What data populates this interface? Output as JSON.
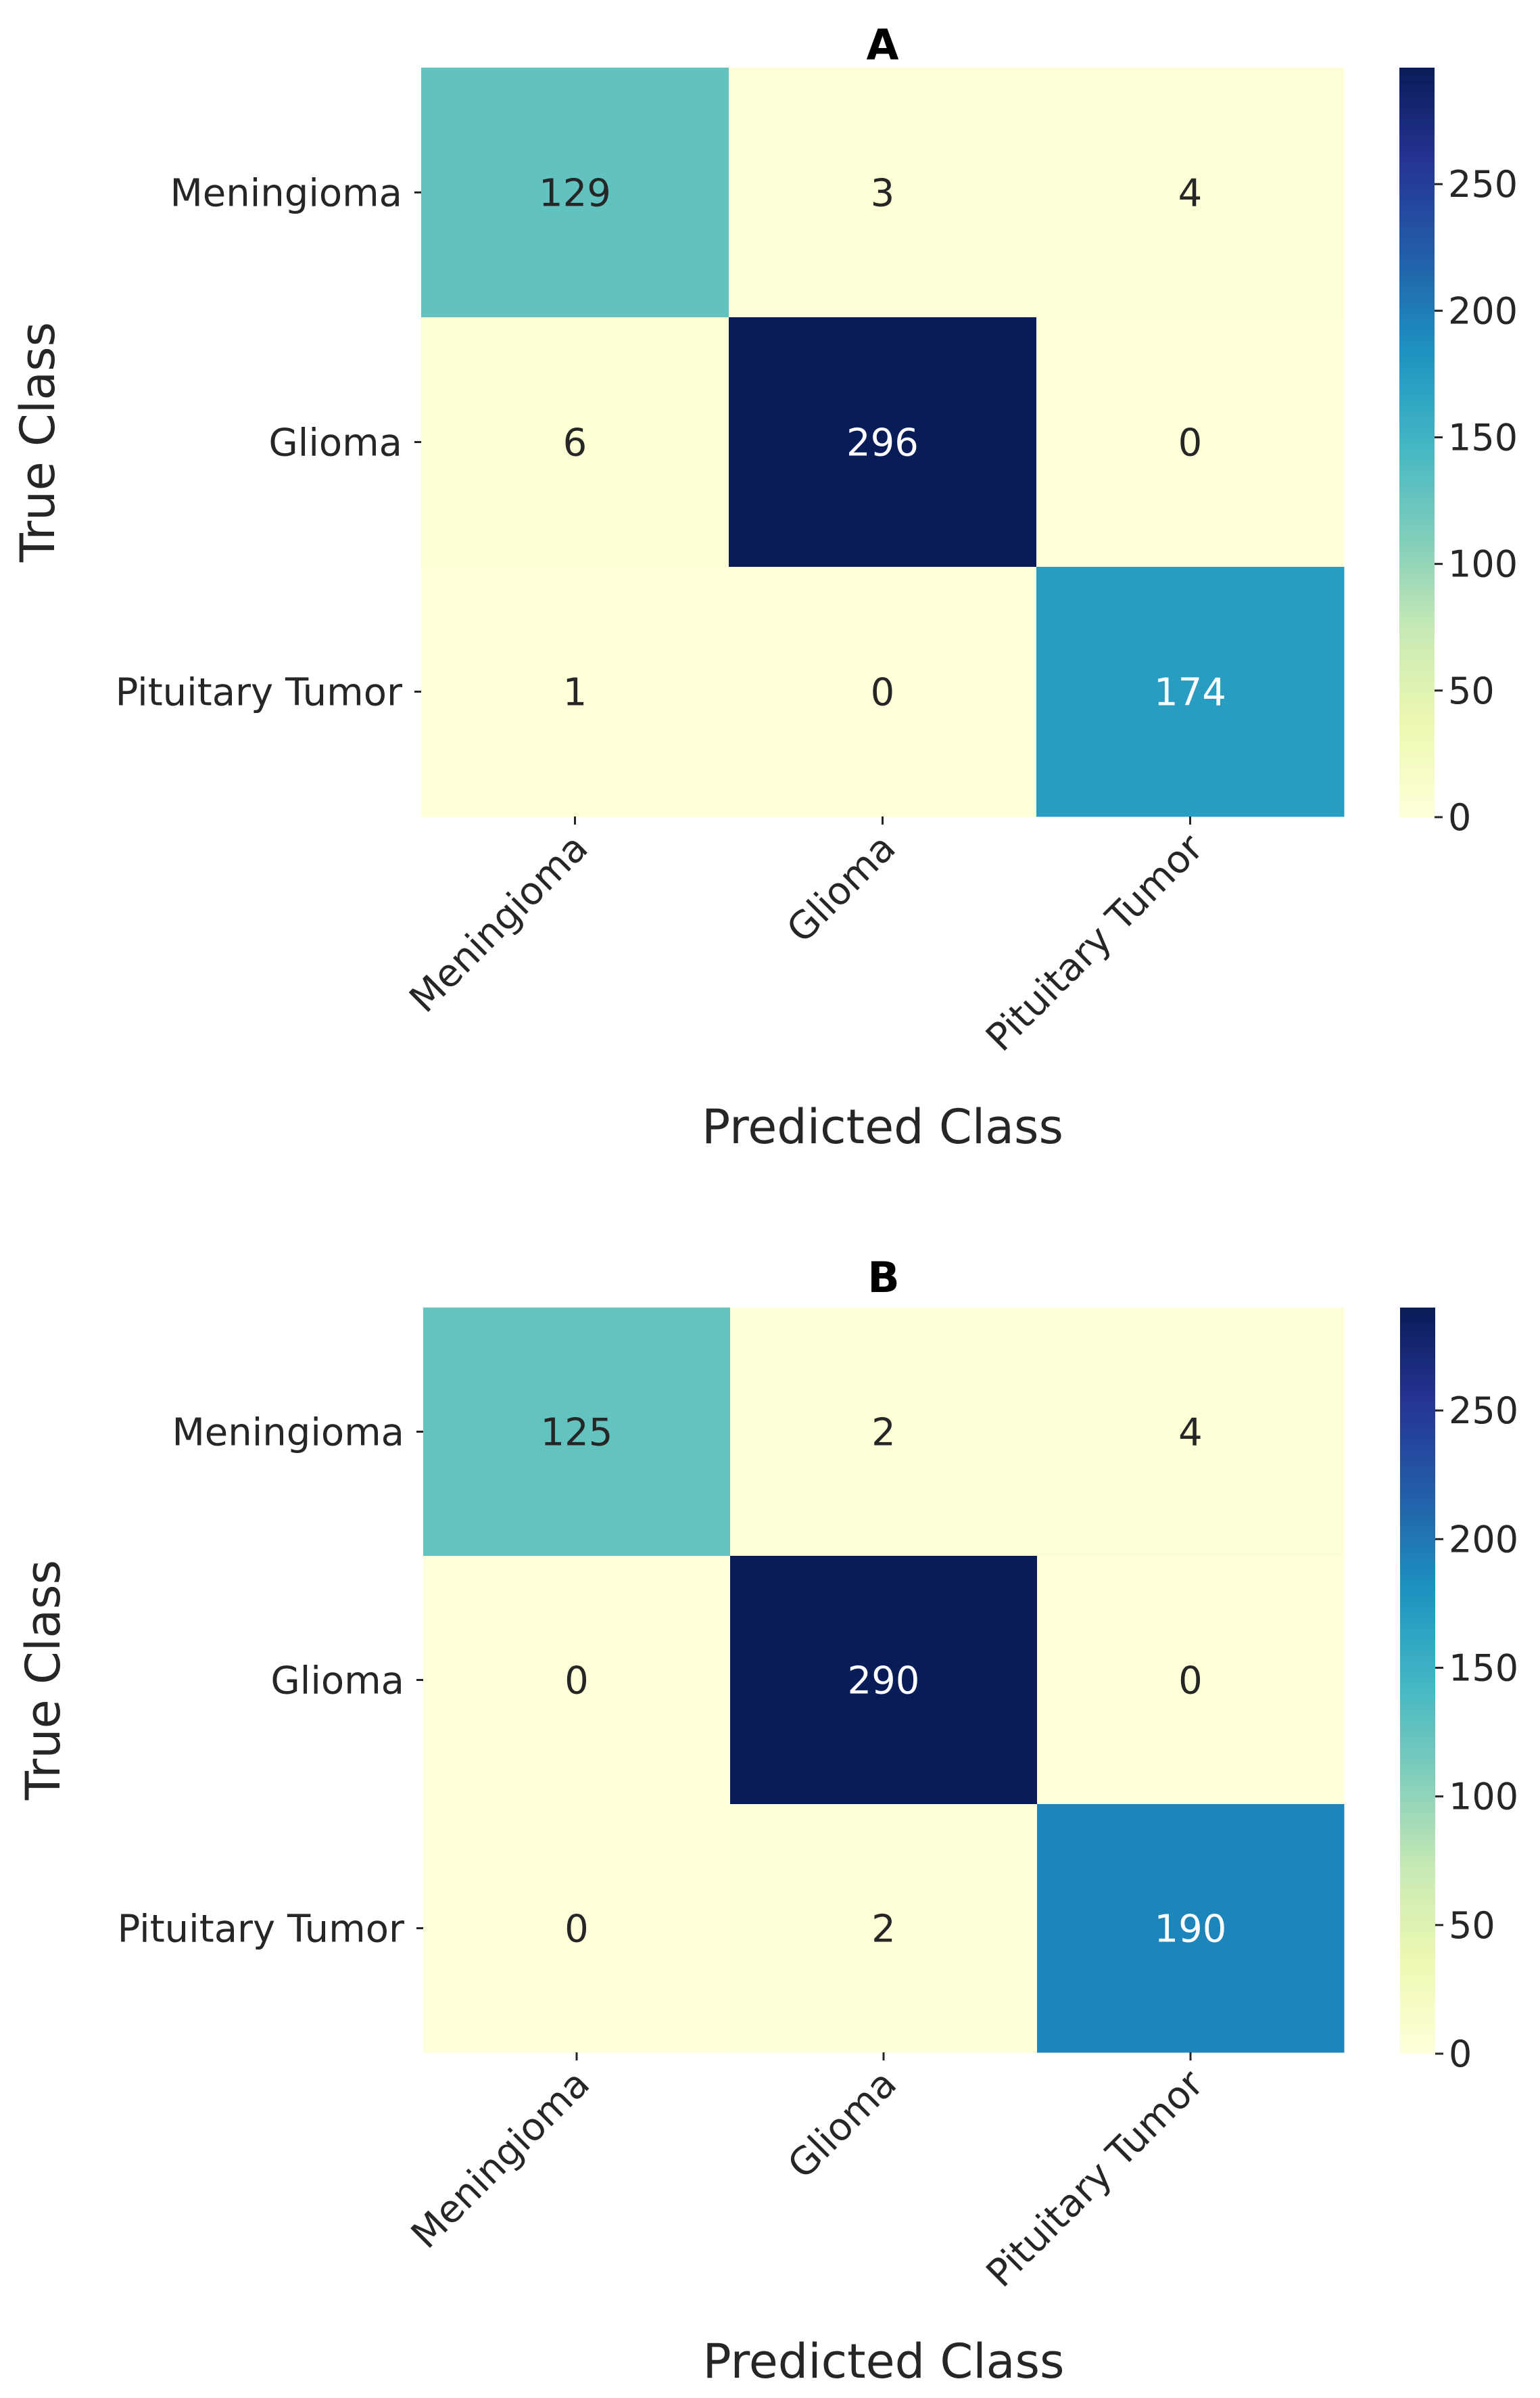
{
  "colors": {
    "background": "#ffffff",
    "text": "#262626",
    "title_text": "#000000",
    "light_cell_text": "#ffffff",
    "colormap": [
      "#ffffd9",
      "#edf8b1",
      "#c7e9b4",
      "#7fcdbb",
      "#41b6c4",
      "#1d91c0",
      "#225ea8",
      "#253494",
      "#081d58"
    ]
  },
  "chart_data": [
    {
      "type": "heatmap",
      "title": "A",
      "xlabel": "Predicted Class",
      "ylabel": "True Class",
      "x_categories": [
        "Meningioma",
        "Glioma",
        "Pituitary Tumor"
      ],
      "y_categories": [
        "Meningioma",
        "Glioma",
        "Pituitary Tumor"
      ],
      "values": [
        [
          129,
          3,
          4
        ],
        [
          6,
          296,
          0
        ],
        [
          1,
          0,
          174
        ]
      ],
      "vmin": 0,
      "vmax": 296,
      "colorbar_ticks": [
        0,
        50,
        100,
        150,
        200,
        250
      ],
      "colorbar_tick_labels": [
        "0",
        "50",
        "100",
        "150",
        "200",
        "250"
      ]
    },
    {
      "type": "heatmap",
      "title": "B",
      "xlabel": "Predicted Class",
      "ylabel": "True Class",
      "x_categories": [
        "Meningioma",
        "Glioma",
        "Pituitary Tumor"
      ],
      "y_categories": [
        "Meningioma",
        "Glioma",
        "Pituitary Tumor"
      ],
      "values": [
        [
          125,
          2,
          4
        ],
        [
          0,
          290,
          0
        ],
        [
          0,
          2,
          190
        ]
      ],
      "vmin": 0,
      "vmax": 290,
      "colorbar_ticks": [
        0,
        50,
        100,
        150,
        200,
        250
      ],
      "colorbar_tick_labels": [
        "0",
        "50",
        "100",
        "150",
        "200",
        "250"
      ]
    }
  ]
}
